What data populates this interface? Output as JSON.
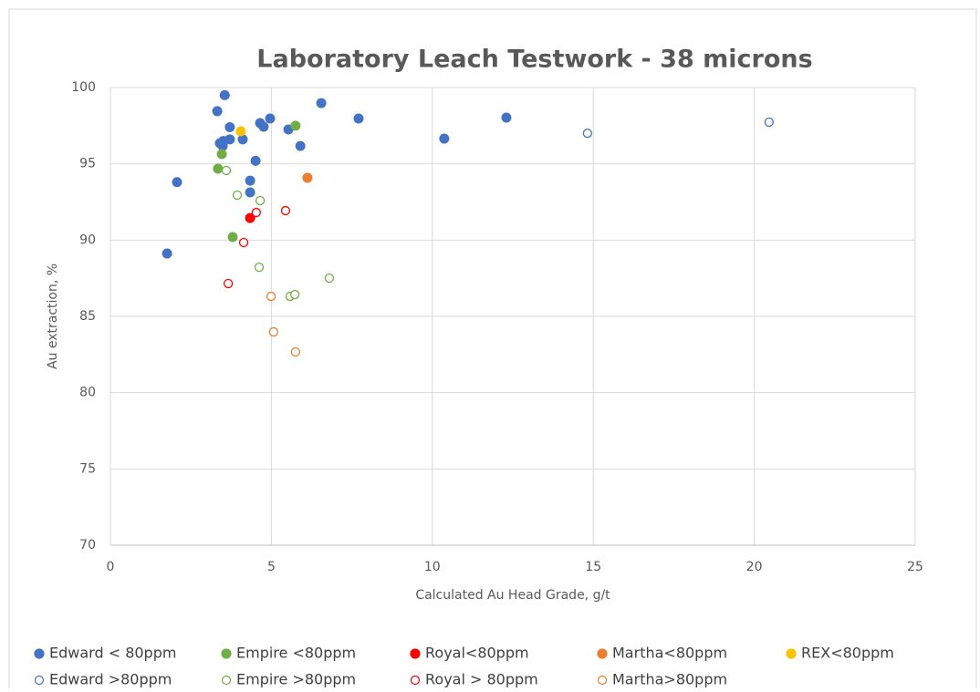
{
  "chart_data": {
    "type": "scatter",
    "title": "Laboratory Leach Testwork - 38 microns",
    "x_label": "Calculated Au Head Grade, g/t",
    "y_label": "Au extraction, %",
    "xlim": [
      0,
      25
    ],
    "xticks": [
      0,
      5,
      10,
      15,
      20,
      25
    ],
    "ylim": [
      70,
      100
    ],
    "yticks": [
      70,
      75,
      80,
      85,
      90,
      95,
      100
    ],
    "grid": true,
    "legend": "bottom",
    "series": [
      {
        "name": "Edward < 80ppm",
        "color": "#4472c4",
        "filled": true,
        "x": [
          3.55,
          3.32,
          3.71,
          4.96,
          4.65,
          4.76,
          5.53,
          6.55,
          7.71,
          12.3,
          10.37,
          5.9,
          4.11,
          3.71,
          3.4,
          3.49,
          3.51,
          4.51,
          4.34,
          4.34,
          2.07,
          1.76
        ],
        "values": [
          99.5,
          98.45,
          97.4,
          97.97,
          97.67,
          97.43,
          97.25,
          98.98,
          97.97,
          98.03,
          96.65,
          96.17,
          96.6,
          96.6,
          96.35,
          96.17,
          96.5,
          95.2,
          93.9,
          93.13,
          93.8,
          89.12
        ]
      },
      {
        "name": "Empire <80ppm",
        "color": "#70ad47",
        "filled": true,
        "x": [
          5.75,
          3.46,
          3.34,
          3.8
        ],
        "values": [
          97.5,
          95.64,
          94.68,
          90.2
        ]
      },
      {
        "name": "Royal<80ppm",
        "color": "#ff0000",
        "filled": true,
        "x": [
          4.34
        ],
        "values": [
          91.45
        ]
      },
      {
        "name": "Martha<80ppm",
        "color": "#ed7d31",
        "filled": true,
        "x": [
          6.12
        ],
        "values": [
          94.08
        ]
      },
      {
        "name": "REX<80ppm",
        "color": "#ffc000",
        "filled": true,
        "x": [
          4.05
        ],
        "values": [
          97.13
        ]
      },
      {
        "name": "Edward >80ppm",
        "color": "#4472c4",
        "filled": false,
        "x": [
          14.82,
          20.46
        ],
        "values": [
          97.0,
          97.73
        ]
      },
      {
        "name": "Empire >80ppm",
        "color": "#70ad47",
        "filled": false,
        "x": [
          3.6,
          3.94,
          4.65,
          4.62,
          6.8,
          5.58,
          5.73
        ],
        "values": [
          94.56,
          92.95,
          92.59,
          88.22,
          87.51,
          86.31,
          86.43
        ]
      },
      {
        "name": "Royal > 80ppm",
        "color": "#ff0000",
        "filled": false,
        "x": [
          4.53,
          5.44,
          4.14,
          3.66
        ],
        "values": [
          91.81,
          91.93,
          89.84,
          87.15
        ]
      },
      {
        "name": "Martha>80ppm",
        "color": "#ed7d31",
        "filled": false,
        "x": [
          4.99,
          5.07,
          5.75
        ],
        "values": [
          86.31,
          83.98,
          82.67
        ]
      }
    ]
  }
}
